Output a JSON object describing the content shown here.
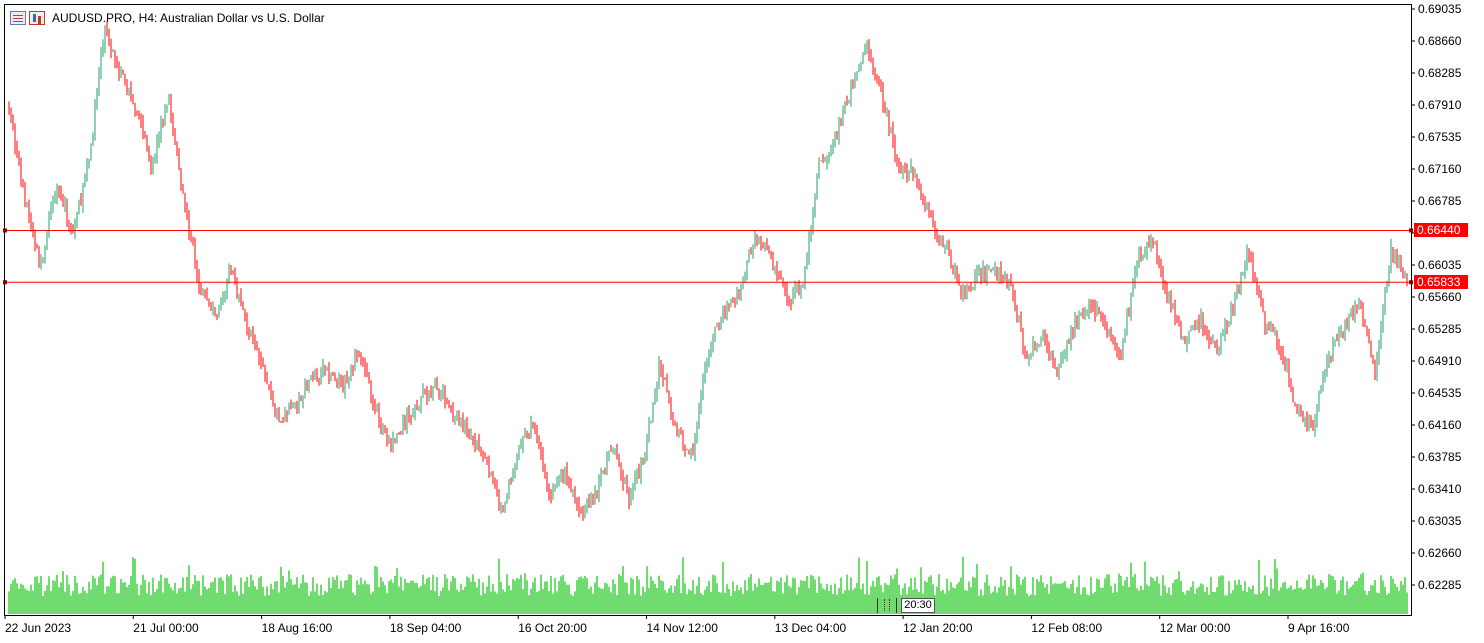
{
  "window": {
    "title": "AUDUSD.PRO, H4:  Australian Dollar vs U.S. Dollar",
    "icons": [
      "chart-window-icon",
      "chart-properties-icon"
    ]
  },
  "colors": {
    "bull": "#26a269",
    "bear": "#ff0000",
    "volume": "#32cd32",
    "level_line": "#ff0000",
    "frame": "#000000"
  },
  "chart_data": {
    "type": "candlestick",
    "symbol": "AUDUSD.PRO",
    "timeframe": "H4",
    "y_ticks": [
      "0.69035",
      "0.68660",
      "0.68285",
      "0.67910",
      "0.67535",
      "0.67160",
      "0.66785",
      "0.66410",
      "0.66035",
      "0.65660",
      "0.65285",
      "0.64910",
      "0.64535",
      "0.64160",
      "0.63785",
      "0.63410",
      "0.63035",
      "0.62660",
      "0.62285"
    ],
    "y_tick_values": [
      0.69035,
      0.6866,
      0.68285,
      0.6791,
      0.67535,
      0.6716,
      0.66785,
      0.6641,
      0.66035,
      0.6566,
      0.65285,
      0.6491,
      0.64535,
      0.6416,
      0.63785,
      0.6341,
      0.63035,
      0.6266,
      0.62285
    ],
    "x_ticks": [
      "22 Jun 2023",
      "21 Jul 00:00",
      "18 Aug 16:00",
      "18 Sep 04:00",
      "16 Oct 20:00",
      "14 Nov 12:00",
      "13 Dec 04:00",
      "12 Jan 20:00",
      "12 Feb 08:00",
      "12 Mar 00:00",
      "9 Apr 16:00"
    ],
    "horizontal_levels": [
      {
        "price": 0.6644,
        "label": "0.66440"
      },
      {
        "price": 0.65833,
        "label": "0.65833"
      }
    ],
    "approx_close_path": [
      [
        0.679,
        0.668,
        0.66,
        0.67,
        0.664,
        0.672,
        0.688,
        0.683,
        0.679,
        0.672,
        0.68,
        0.668,
        0.658,
        0.654,
        0.66,
        0.653,
        0.648,
        0.642,
        0.644,
        0.647
      ],
      [
        0.648,
        0.646,
        0.65,
        0.644,
        0.639,
        0.642,
        0.645,
        0.646,
        0.643,
        0.64,
        0.638,
        0.631,
        0.638,
        0.642,
        0.633,
        0.636,
        0.631,
        0.634,
        0.639,
        0.633
      ],
      [
        0.638,
        0.649,
        0.641,
        0.638,
        0.65,
        0.655,
        0.657,
        0.664,
        0.661,
        0.656,
        0.658,
        0.672,
        0.675,
        0.681,
        0.686,
        0.68,
        0.672,
        0.671,
        0.666,
        0.662
      ],
      [
        0.657,
        0.659,
        0.66,
        0.658,
        0.65,
        0.652,
        0.648,
        0.653,
        0.656,
        0.653,
        0.65,
        0.661,
        0.663,
        0.656,
        0.651,
        0.654,
        0.65,
        0.655,
        0.662,
        0.654
      ],
      [
        0.651,
        0.644,
        0.641,
        0.649,
        0.653,
        0.656,
        0.648,
        0.662,
        0.6583
      ]
    ]
  },
  "time_tag": "20:30"
}
